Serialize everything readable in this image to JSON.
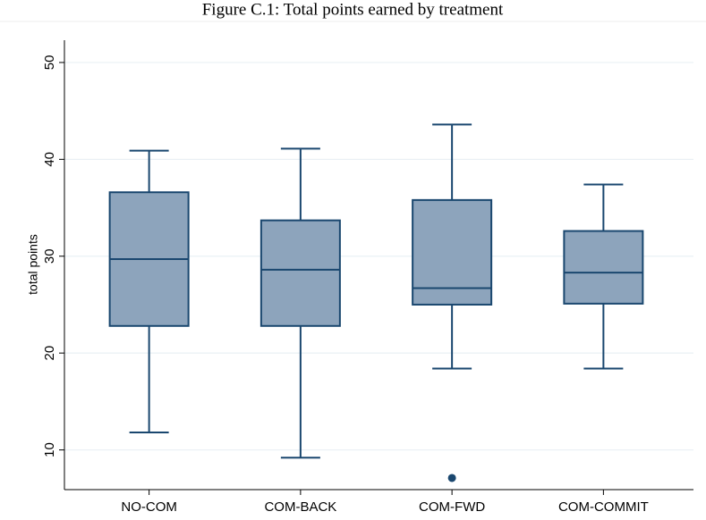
{
  "chart_data": {
    "type": "box",
    "title": "Figure C.1: Total points earned by treatment",
    "y_label": "total points",
    "categories": [
      "NO-COM",
      "COM-BACK",
      "COM-FWD",
      "COM-COMMIT"
    ],
    "boxes": [
      {
        "whislo": 11.8,
        "q1": 22.8,
        "med": 29.7,
        "q3": 36.6,
        "whishi": 40.9,
        "fliers": []
      },
      {
        "whislo": 9.2,
        "q1": 22.8,
        "med": 28.6,
        "q3": 33.7,
        "whishi": 41.1,
        "fliers": []
      },
      {
        "whislo": 18.4,
        "q1": 25.0,
        "med": 26.7,
        "q3": 35.8,
        "whishi": 43.6,
        "fliers": [
          7.1
        ]
      },
      {
        "whislo": 18.4,
        "q1": 25.1,
        "med": 28.3,
        "q3": 32.6,
        "whishi": 37.4,
        "fliers": []
      }
    ],
    "color": "#8da4bc",
    "edge_color": "#1a476f",
    "ylim": [
      5.9,
      52.3
    ],
    "yticks": [
      10,
      20,
      30,
      40,
      50
    ],
    "grid": true
  }
}
